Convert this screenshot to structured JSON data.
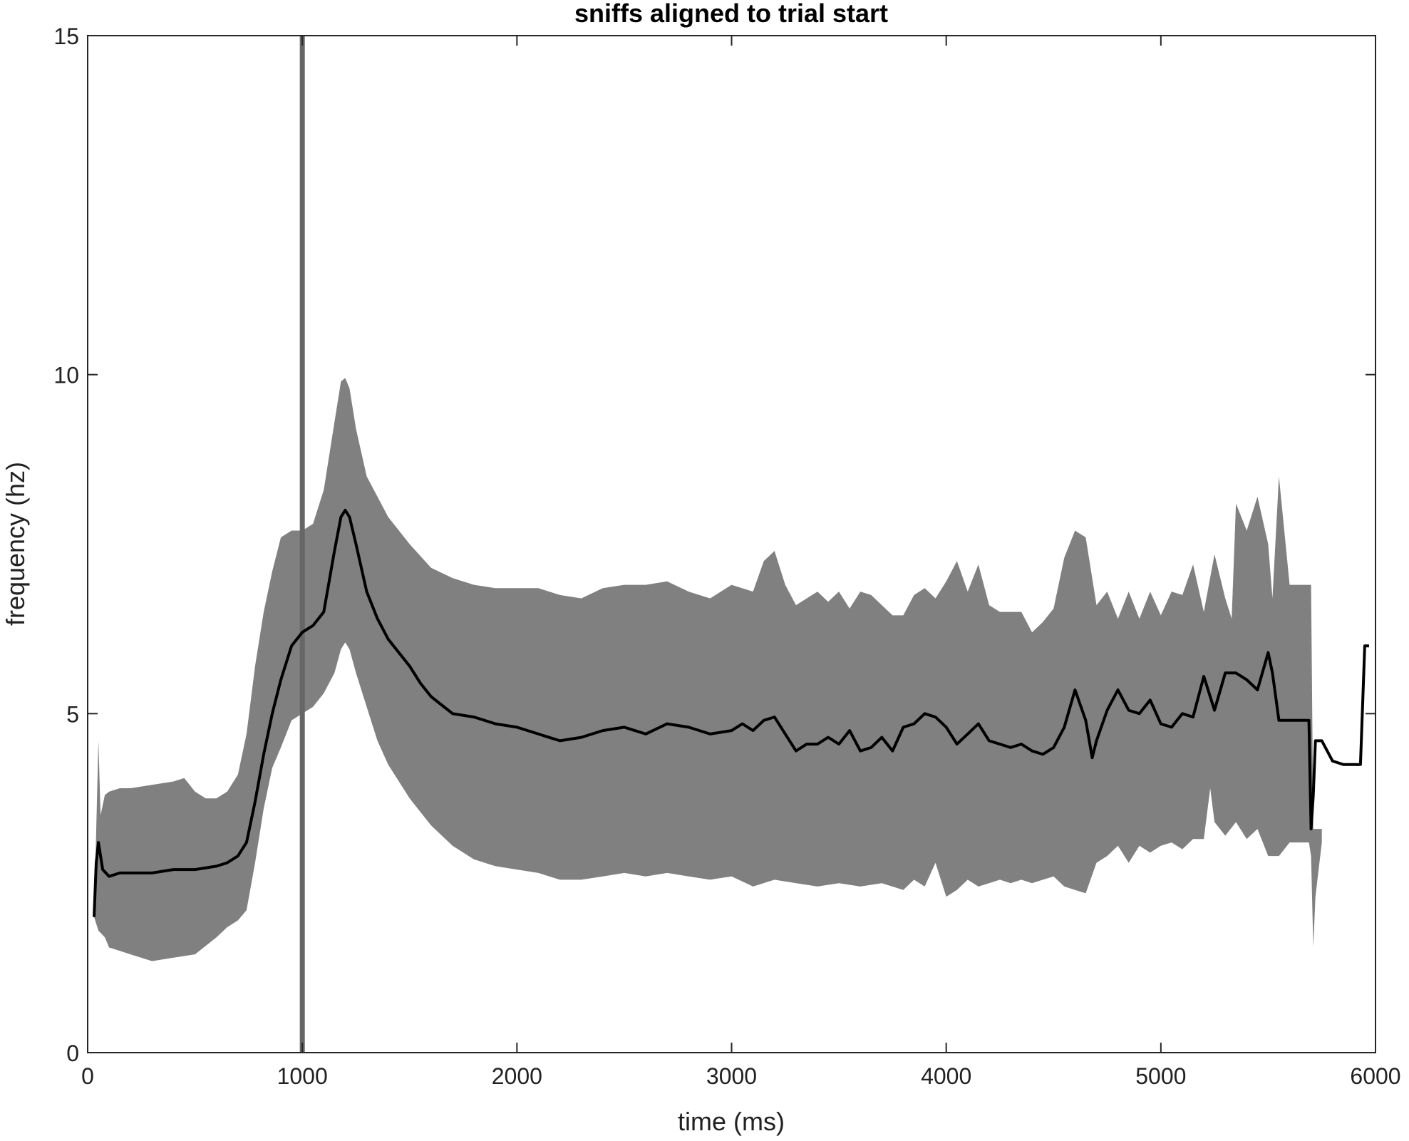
{
  "chart_data": {
    "type": "line",
    "title": "sniffs aligned to trial start",
    "xlabel": "time (ms)",
    "ylabel": "frequency (hz)",
    "xlim": [
      0,
      6000
    ],
    "ylim": [
      0,
      15
    ],
    "xticks": [
      0,
      1000,
      2000,
      3000,
      4000,
      5000,
      6000
    ],
    "yticks": [
      0,
      5,
      10,
      15
    ],
    "grid": false,
    "legend": "none",
    "colors": {
      "band": "#808080",
      "mean": "#000000",
      "marker": "#666666",
      "axes": "#262626"
    },
    "vertical_marker_x": 1000,
    "series": [
      {
        "role": "mean",
        "x": [
          30,
          40,
          50,
          60,
          70,
          100,
          150,
          200,
          300,
          400,
          500,
          600,
          650,
          700,
          740,
          780,
          820,
          860,
          900,
          950,
          1000,
          1050,
          1100,
          1150,
          1180,
          1200,
          1220,
          1250,
          1300,
          1350,
          1400,
          1450,
          1500,
          1550,
          1600,
          1700,
          1800,
          1900,
          2000,
          2100,
          2200,
          2300,
          2400,
          2500,
          2600,
          2700,
          2800,
          2900,
          3000,
          3050,
          3100,
          3150,
          3200,
          3250,
          3300,
          3350,
          3400,
          3450,
          3500,
          3550,
          3600,
          3650,
          3700,
          3750,
          3800,
          3850,
          3900,
          3950,
          4000,
          4050,
          4100,
          4150,
          4200,
          4250,
          4300,
          4350,
          4400,
          4450,
          4500,
          4550,
          4600,
          4650,
          4680,
          4700,
          4750,
          4800,
          4850,
          4900,
          4950,
          5000,
          5050,
          5100,
          5150,
          5200,
          5250,
          5300,
          5350,
          5400,
          5450,
          5500,
          5520,
          5550,
          5600,
          5650,
          5690,
          5700,
          5710,
          5720,
          5750,
          5800,
          5850,
          5900,
          5930,
          5950,
          5970
        ],
        "y": [
          2.0,
          2.8,
          3.1,
          2.9,
          2.7,
          2.6,
          2.65,
          2.65,
          2.65,
          2.7,
          2.7,
          2.75,
          2.8,
          2.9,
          3.1,
          3.7,
          4.4,
          5.0,
          5.5,
          6.0,
          6.2,
          6.3,
          6.5,
          7.4,
          7.9,
          8.0,
          7.9,
          7.5,
          6.8,
          6.4,
          6.1,
          5.9,
          5.7,
          5.45,
          5.25,
          5.0,
          4.95,
          4.85,
          4.8,
          4.7,
          4.6,
          4.65,
          4.75,
          4.8,
          4.7,
          4.85,
          4.8,
          4.7,
          4.75,
          4.85,
          4.75,
          4.9,
          4.95,
          4.7,
          4.45,
          4.55,
          4.55,
          4.65,
          4.55,
          4.75,
          4.45,
          4.5,
          4.65,
          4.45,
          4.8,
          4.85,
          5.0,
          4.95,
          4.8,
          4.55,
          4.7,
          4.85,
          4.6,
          4.55,
          4.5,
          4.55,
          4.45,
          4.4,
          4.5,
          4.8,
          5.35,
          4.9,
          4.35,
          4.6,
          5.05,
          5.35,
          5.05,
          5.0,
          5.2,
          4.85,
          4.8,
          5.0,
          4.95,
          5.55,
          5.05,
          5.6,
          5.6,
          5.5,
          5.35,
          5.9,
          5.6,
          4.9,
          4.9,
          4.9,
          4.9,
          3.3,
          3.8,
          4.6,
          4.6,
          4.3,
          4.25,
          4.25,
          4.25,
          6.0,
          6.0
        ]
      },
      {
        "role": "band-upper",
        "x": [
          30,
          50,
          60,
          80,
          100,
          150,
          200,
          300,
          400,
          450,
          500,
          550,
          600,
          650,
          700,
          740,
          780,
          820,
          860,
          900,
          950,
          1000,
          1050,
          1100,
          1150,
          1180,
          1200,
          1220,
          1250,
          1300,
          1350,
          1400,
          1500,
          1600,
          1700,
          1800,
          1900,
          2000,
          2100,
          2200,
          2300,
          2400,
          2500,
          2600,
          2700,
          2800,
          2900,
          3000,
          3100,
          3150,
          3200,
          3250,
          3300,
          3350,
          3400,
          3450,
          3500,
          3550,
          3600,
          3650,
          3700,
          3750,
          3800,
          3850,
          3900,
          3950,
          4000,
          4050,
          4100,
          4150,
          4200,
          4250,
          4300,
          4350,
          4400,
          4450,
          4500,
          4550,
          4600,
          4650,
          4700,
          4750,
          4800,
          4850,
          4900,
          4950,
          5000,
          5050,
          5100,
          5150,
          5200,
          5250,
          5300,
          5330,
          5350,
          5400,
          5450,
          5500,
          5520,
          5550,
          5600,
          5650,
          5700,
          5710,
          5720,
          5750
        ],
        "y": [
          2.0,
          4.6,
          3.5,
          3.8,
          3.85,
          3.9,
          3.9,
          3.95,
          4.0,
          4.05,
          3.85,
          3.75,
          3.75,
          3.85,
          4.1,
          4.7,
          5.7,
          6.5,
          7.1,
          7.6,
          7.7,
          7.7,
          7.8,
          8.3,
          9.3,
          9.9,
          9.95,
          9.8,
          9.2,
          8.5,
          8.2,
          7.9,
          7.5,
          7.15,
          7.0,
          6.9,
          6.85,
          6.85,
          6.85,
          6.75,
          6.7,
          6.85,
          6.9,
          6.9,
          6.95,
          6.8,
          6.7,
          6.9,
          6.8,
          7.25,
          7.4,
          6.9,
          6.6,
          6.7,
          6.8,
          6.65,
          6.8,
          6.55,
          6.8,
          6.75,
          6.6,
          6.45,
          6.45,
          6.75,
          6.85,
          6.7,
          6.95,
          7.25,
          6.8,
          7.2,
          6.6,
          6.5,
          6.5,
          6.5,
          6.2,
          6.35,
          6.55,
          7.3,
          7.7,
          7.6,
          6.6,
          6.8,
          6.4,
          6.8,
          6.4,
          6.8,
          6.45,
          6.8,
          6.75,
          7.2,
          6.5,
          7.35,
          6.7,
          6.4,
          8.1,
          7.7,
          8.2,
          7.5,
          6.7,
          8.5,
          6.9,
          6.9,
          6.9,
          3.3,
          3.3,
          3.3
        ]
      },
      {
        "role": "band-lower",
        "x": [
          30,
          50,
          80,
          100,
          150,
          200,
          300,
          400,
          500,
          600,
          650,
          700,
          740,
          780,
          820,
          860,
          900,
          950,
          1000,
          1050,
          1100,
          1150,
          1180,
          1200,
          1220,
          1250,
          1300,
          1350,
          1400,
          1500,
          1600,
          1700,
          1800,
          1900,
          2000,
          2100,
          2200,
          2300,
          2400,
          2500,
          2600,
          2700,
          2800,
          2900,
          3000,
          3100,
          3200,
          3300,
          3400,
          3500,
          3600,
          3700,
          3800,
          3850,
          3900,
          3950,
          4000,
          4050,
          4100,
          4150,
          4200,
          4250,
          4300,
          4350,
          4400,
          4450,
          4500,
          4550,
          4600,
          4650,
          4700,
          4750,
          4800,
          4850,
          4900,
          4950,
          5000,
          5050,
          5100,
          5150,
          5200,
          5230,
          5250,
          5300,
          5350,
          5400,
          5450,
          5500,
          5550,
          5600,
          5650,
          5690,
          5700,
          5710,
          5720,
          5750
        ],
        "y": [
          2.0,
          1.8,
          1.7,
          1.55,
          1.5,
          1.45,
          1.35,
          1.4,
          1.45,
          1.7,
          1.85,
          1.95,
          2.1,
          2.8,
          3.6,
          4.2,
          4.5,
          4.9,
          5.0,
          5.1,
          5.3,
          5.6,
          5.95,
          6.05,
          5.95,
          5.6,
          5.1,
          4.6,
          4.25,
          3.75,
          3.35,
          3.05,
          2.85,
          2.75,
          2.7,
          2.65,
          2.55,
          2.55,
          2.6,
          2.65,
          2.6,
          2.65,
          2.6,
          2.55,
          2.6,
          2.45,
          2.55,
          2.5,
          2.45,
          2.5,
          2.45,
          2.5,
          2.4,
          2.55,
          2.45,
          2.8,
          2.3,
          2.4,
          2.55,
          2.45,
          2.5,
          2.55,
          2.5,
          2.55,
          2.5,
          2.55,
          2.6,
          2.45,
          2.4,
          2.35,
          2.8,
          2.9,
          3.05,
          2.8,
          3.05,
          2.95,
          3.05,
          3.1,
          3.0,
          3.15,
          3.15,
          3.9,
          3.4,
          3.2,
          3.4,
          3.15,
          3.3,
          2.9,
          2.9,
          3.1,
          3.1,
          3.1,
          2.9,
          1.55,
          2.3,
          3.1
        ]
      }
    ]
  }
}
